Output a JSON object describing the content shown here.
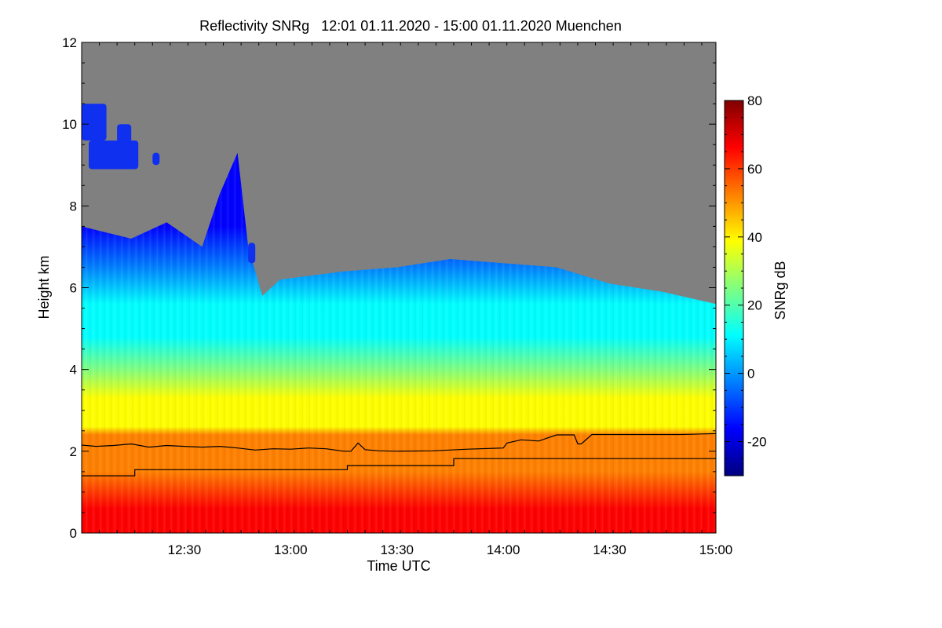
{
  "chart_data": {
    "type": "heatmap",
    "title": "Reflectivity SNRg   12:01 01.11.2020 - 15:00 01.11.2020 Muenchen",
    "xlabel": "Time UTC",
    "ylabel": "Height km",
    "xlim": [
      "12:01",
      "15:00"
    ],
    "ylim": [
      0,
      12
    ],
    "xticks": [
      "12:30",
      "13:00",
      "13:30",
      "14:00",
      "14:30",
      "15:00"
    ],
    "yticks": [
      "0",
      "2",
      "4",
      "6",
      "8",
      "10",
      "12"
    ],
    "colorbar": {
      "label": "SNRg dB",
      "range": [
        -30,
        80
      ],
      "ticks": [
        "-20",
        "0",
        "20",
        "40",
        "60",
        "80"
      ],
      "colors": [
        "#000080",
        "#0000ff",
        "#0080ff",
        "#00ffff",
        "#80ff80",
        "#ffff00",
        "#ff8000",
        "#ff0000",
        "#800000"
      ]
    },
    "no_signal_color": "#808080",
    "cloud_top_km": [
      {
        "time": "12:01",
        "top": 7.5
      },
      {
        "time": "12:15",
        "top": 7.2
      },
      {
        "time": "12:25",
        "top": 7.6
      },
      {
        "time": "12:35",
        "top": 7.0
      },
      {
        "time": "12:40",
        "top": 8.3
      },
      {
        "time": "12:45",
        "top": 9.3
      },
      {
        "time": "12:48",
        "top": 7.0
      },
      {
        "time": "12:52",
        "top": 5.8
      },
      {
        "time": "12:57",
        "top": 6.2
      },
      {
        "time": "13:15",
        "top": 6.4
      },
      {
        "time": "13:30",
        "top": 6.5
      },
      {
        "time": "13:45",
        "top": 6.7
      },
      {
        "time": "14:00",
        "top": 6.6
      },
      {
        "time": "14:15",
        "top": 6.5
      },
      {
        "time": "14:30",
        "top": 6.1
      },
      {
        "time": "14:45",
        "top": 5.9
      },
      {
        "time": "15:00",
        "top": 5.6
      }
    ],
    "upper_cloud_patches": [
      {
        "time_start": "12:01",
        "time_end": "12:08",
        "bottom_km": 9.6,
        "top_km": 10.5
      },
      {
        "time_start": "12:03",
        "time_end": "12:17",
        "bottom_km": 8.9,
        "top_km": 9.6
      },
      {
        "time_start": "12:11",
        "time_end": "12:15",
        "bottom_km": 9.5,
        "top_km": 10.0
      },
      {
        "time_start": "12:21",
        "time_end": "12:23",
        "bottom_km": 9.0,
        "top_km": 9.3
      },
      {
        "time_start": "12:48",
        "time_end": "12:50",
        "bottom_km": 6.6,
        "top_km": 7.1
      }
    ],
    "series": [
      {
        "name": "",
        "type": "line",
        "x": [
          "12:01",
          "12:05",
          "12:10",
          "12:15",
          "12:20",
          "12:25",
          "12:30",
          "12:35",
          "12:40",
          "12:45",
          "12:50",
          "12:55",
          "13:00",
          "13:05",
          "13:10",
          "13:15",
          "13:17",
          "13:19",
          "13:21",
          "13:25",
          "13:30",
          "13:40",
          "13:50",
          "14:00",
          "14:01",
          "14:05",
          "14:10",
          "14:15",
          "14:18",
          "14:20",
          "14:21",
          "14:22",
          "14:25",
          "14:30",
          "14:40",
          "14:50",
          "15:00"
        ],
        "y": [
          2.15,
          2.12,
          2.14,
          2.18,
          2.1,
          2.14,
          2.12,
          2.1,
          2.12,
          2.08,
          2.03,
          2.06,
          2.05,
          2.08,
          2.06,
          2.0,
          2.0,
          2.2,
          2.04,
          2.01,
          2.0,
          2.01,
          2.05,
          2.08,
          2.2,
          2.28,
          2.25,
          2.4,
          2.4,
          2.4,
          2.18,
          2.18,
          2.41,
          2.41,
          2.41,
          2.41,
          2.43
        ]
      },
      {
        "name": "",
        "type": "step",
        "x": [
          "12:01",
          "12:16",
          "13:16",
          "13:46",
          "15:00"
        ],
        "y": [
          1.4,
          1.55,
          1.65,
          1.82,
          1.82
        ]
      }
    ]
  }
}
